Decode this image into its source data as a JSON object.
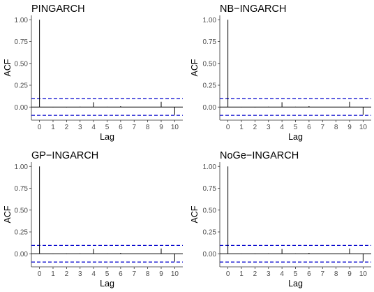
{
  "chart_data": [
    {
      "type": "bar",
      "title": "PINGARCH",
      "xlabel": "Lag",
      "ylabel": "ACF",
      "x": [
        0,
        1,
        2,
        3,
        4,
        5,
        6,
        7,
        8,
        9,
        10
      ],
      "values": [
        1.0,
        -0.003,
        -0.004,
        0.004,
        0.055,
        0.003,
        0.01,
        -0.002,
        0.002,
        0.06,
        -0.09
      ],
      "ci": [
        -0.095,
        0.095
      ],
      "ylim": [
        -0.15,
        1.05
      ],
      "xlim": [
        -0.6,
        10.6
      ],
      "yticks": [
        "0.00",
        "0.25",
        "0.50",
        "0.75",
        "1.00"
      ],
      "xticks": [
        "0",
        "1",
        "2",
        "3",
        "4",
        "5",
        "6",
        "7",
        "8",
        "9",
        "10"
      ],
      "grid": false
    },
    {
      "type": "bar",
      "title": "NB−INGARCH",
      "xlabel": "Lag",
      "ylabel": "ACF",
      "x": [
        0,
        1,
        2,
        3,
        4,
        5,
        6,
        7,
        8,
        9,
        10
      ],
      "values": [
        1.0,
        -0.003,
        -0.004,
        0.004,
        0.055,
        0.003,
        0.01,
        -0.002,
        0.002,
        0.06,
        -0.09
      ],
      "ci": [
        -0.095,
        0.095
      ],
      "ylim": [
        -0.15,
        1.05
      ],
      "xlim": [
        -0.6,
        10.6
      ],
      "yticks": [
        "0.00",
        "0.25",
        "0.50",
        "0.75",
        "1.00"
      ],
      "xticks": [
        "0",
        "1",
        "2",
        "3",
        "4",
        "5",
        "6",
        "7",
        "8",
        "9",
        "10"
      ],
      "grid": false
    },
    {
      "type": "bar",
      "title": "GP−INGARCH",
      "xlabel": "Lag",
      "ylabel": "ACF",
      "x": [
        0,
        1,
        2,
        3,
        4,
        5,
        6,
        7,
        8,
        9,
        10
      ],
      "values": [
        1.0,
        -0.003,
        -0.004,
        0.004,
        0.055,
        0.003,
        0.01,
        -0.002,
        0.002,
        0.06,
        -0.09
      ],
      "ci": [
        -0.095,
        0.095
      ],
      "ylim": [
        -0.15,
        1.05
      ],
      "xlim": [
        -0.6,
        10.6
      ],
      "yticks": [
        "0.00",
        "0.25",
        "0.50",
        "0.75",
        "1.00"
      ],
      "xticks": [
        "0",
        "1",
        "2",
        "3",
        "4",
        "5",
        "6",
        "7",
        "8",
        "9",
        "10"
      ],
      "grid": false
    },
    {
      "type": "bar",
      "title": "NoGe−INGARCH",
      "xlabel": "Lag",
      "ylabel": "ACF",
      "x": [
        0,
        1,
        2,
        3,
        4,
        5,
        6,
        7,
        8,
        9,
        10
      ],
      "values": [
        1.0,
        -0.003,
        -0.004,
        0.004,
        0.055,
        0.003,
        0.01,
        -0.002,
        0.002,
        0.06,
        -0.09
      ],
      "ci": [
        -0.095,
        0.095
      ],
      "ylim": [
        -0.15,
        1.05
      ],
      "xlim": [
        -0.6,
        10.6
      ],
      "yticks": [
        "0.00",
        "0.25",
        "0.50",
        "0.75",
        "1.00"
      ],
      "xticks": [
        "0",
        "1",
        "2",
        "3",
        "4",
        "5",
        "6",
        "7",
        "8",
        "9",
        "10"
      ],
      "grid": false
    }
  ],
  "colors": {
    "bar": "#000000",
    "ci": "#0000cc",
    "zero": "#000000",
    "tick_text": "#4d4d4d"
  }
}
